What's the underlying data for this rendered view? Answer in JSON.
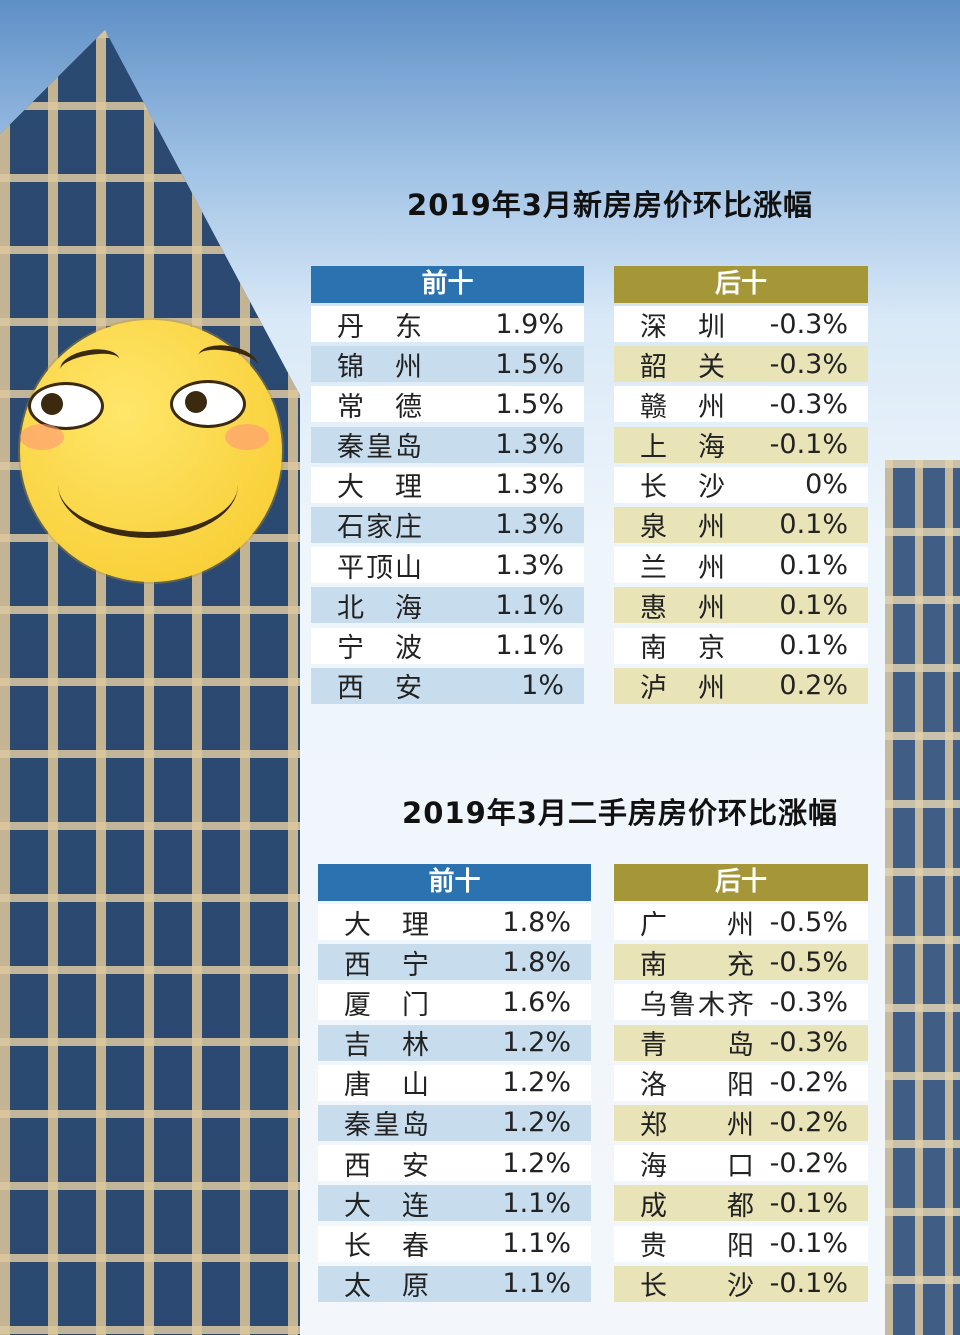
{
  "section1": {
    "title": "2019年3月新房房价环比涨幅",
    "top": {
      "header": "前十",
      "rows": [
        {
          "city": "丹　东",
          "value": "1.9%"
        },
        {
          "city": "锦　州",
          "value": "1.5%"
        },
        {
          "city": "常　德",
          "value": "1.5%"
        },
        {
          "city": "秦皇岛",
          "value": "1.3%"
        },
        {
          "city": "大　理",
          "value": "1.3%"
        },
        {
          "city": "石家庄",
          "value": "1.3%"
        },
        {
          "city": "平顶山",
          "value": "1.3%"
        },
        {
          "city": "北　海",
          "value": "1.1%"
        },
        {
          "city": "宁　波",
          "value": "1.1%"
        },
        {
          "city": "西　安",
          "value": "1%"
        }
      ]
    },
    "bottom": {
      "header": "后十",
      "rows": [
        {
          "city": "深　圳",
          "value": "-0.3%"
        },
        {
          "city": "韶　关",
          "value": "-0.3%"
        },
        {
          "city": "赣　州",
          "value": "-0.3%"
        },
        {
          "city": "上　海",
          "value": "-0.1%"
        },
        {
          "city": "长　沙",
          "value": "0%"
        },
        {
          "city": "泉　州",
          "value": "0.1%"
        },
        {
          "city": "兰　州",
          "value": "0.1%"
        },
        {
          "city": "惠　州",
          "value": "0.1%"
        },
        {
          "city": "南　京",
          "value": "0.1%"
        },
        {
          "city": "泸　州",
          "value": "0.2%"
        }
      ]
    }
  },
  "section2": {
    "title": "2019年3月二手房房价环比涨幅",
    "top": {
      "header": "前十",
      "rows": [
        {
          "city": "大　理",
          "value": "1.8%"
        },
        {
          "city": "西　宁",
          "value": "1.8%"
        },
        {
          "city": "厦　门",
          "value": "1.6%"
        },
        {
          "city": "吉　林",
          "value": "1.2%"
        },
        {
          "city": "唐　山",
          "value": "1.2%"
        },
        {
          "city": "秦皇岛",
          "value": "1.2%"
        },
        {
          "city": "西　安",
          "value": "1.2%"
        },
        {
          "city": "大　连",
          "value": "1.1%"
        },
        {
          "city": "长　春",
          "value": "1.1%"
        },
        {
          "city": "太　原",
          "value": "1.1%"
        }
      ]
    },
    "bottom": {
      "header": "后十",
      "rows": [
        {
          "city": "广　　州",
          "value": "-0.5%"
        },
        {
          "city": "南　　充",
          "value": "-0.5%"
        },
        {
          "city": "乌鲁木齐",
          "value": "-0.3%"
        },
        {
          "city": "青　　岛",
          "value": "-0.3%"
        },
        {
          "city": "洛　　阳",
          "value": "-0.2%"
        },
        {
          "city": "郑　　州",
          "value": "-0.2%"
        },
        {
          "city": "海　　口",
          "value": "-0.2%"
        },
        {
          "city": "成　　都",
          "value": "-0.1%"
        },
        {
          "city": "贵　　阳",
          "value": "-0.1%"
        },
        {
          "city": "长　　沙",
          "value": "-0.1%"
        }
      ]
    }
  },
  "colors": {
    "top_header": "#2a72b0",
    "bottom_header": "#a59638",
    "top_stripe": "#c7dced",
    "bottom_stripe": "#e9e3b8"
  },
  "decor": {
    "sticker": "smirk-face-emoji",
    "background": "building-photo"
  }
}
